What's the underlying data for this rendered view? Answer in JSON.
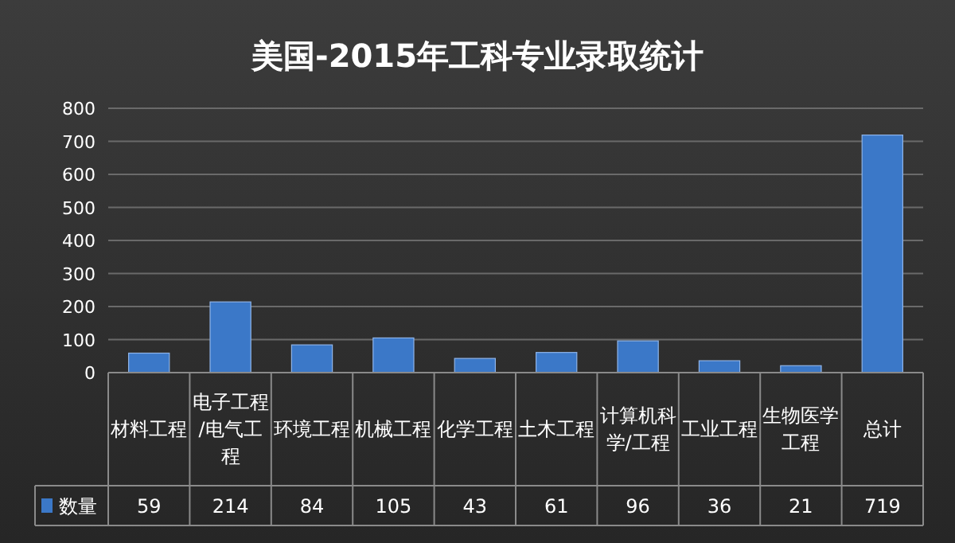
{
  "chart_data": {
    "type": "bar",
    "title": "美国-2015年工科专业录取统计",
    "categories": [
      "材料工程",
      "电子工程/电气工程",
      "环境工程",
      "机械工程",
      "化学工程",
      "土木工程",
      "计算机科学/工程",
      "工业工程",
      "生物医学工程",
      "总计"
    ],
    "series": [
      {
        "name": "数量",
        "color": "#3b78c8",
        "values": [
          59,
          214,
          84,
          105,
          43,
          61,
          96,
          36,
          21,
          719
        ]
      }
    ],
    "ylim": [
      0,
      800
    ],
    "yticks": [
      0,
      100,
      200,
      300,
      400,
      500,
      600,
      700,
      800
    ],
    "grid": "y",
    "data_labels": true,
    "legend": "bottom"
  }
}
